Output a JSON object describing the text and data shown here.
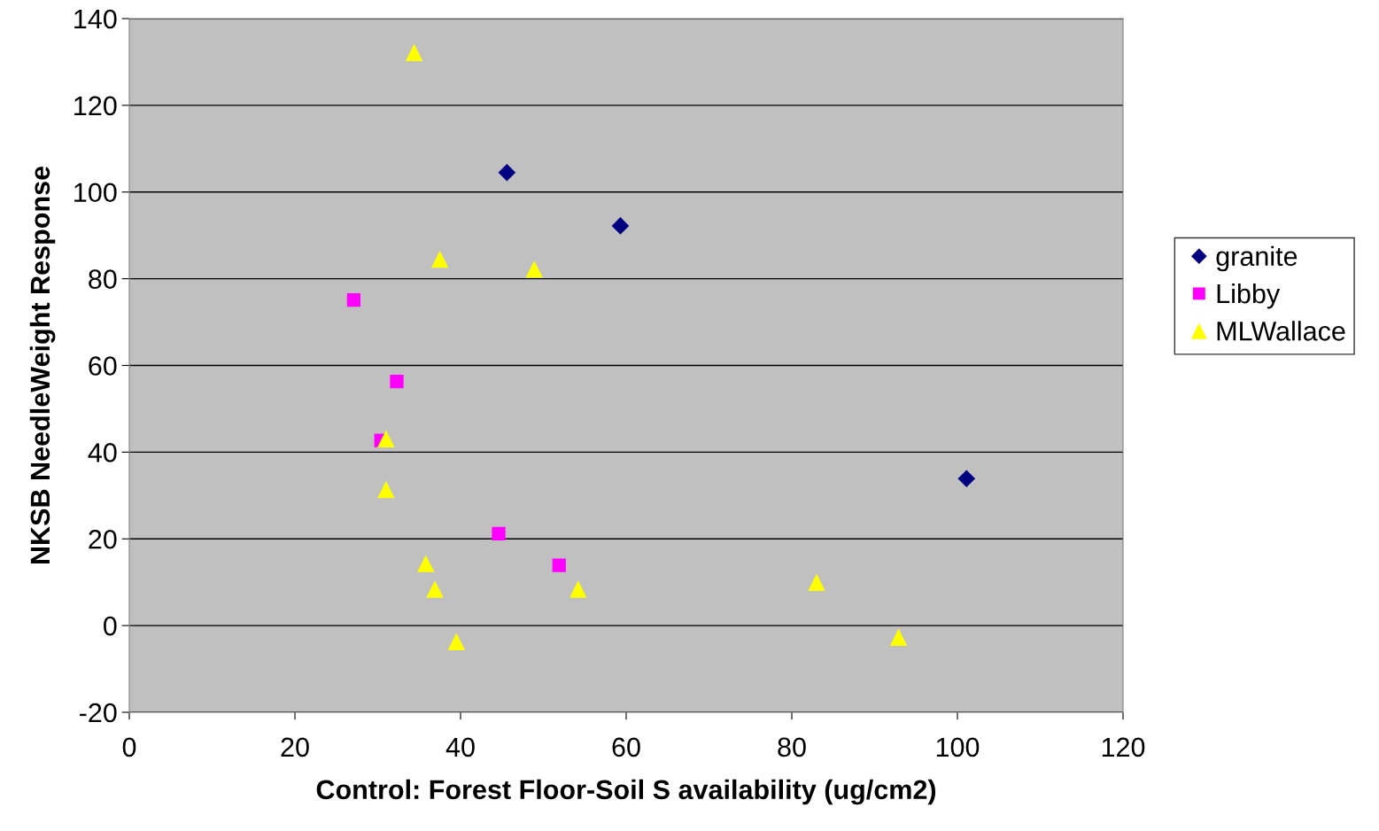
{
  "chart_data": {
    "type": "scatter",
    "xlabel": "Control: Forest Floor-Soil S availability (ug/cm2)",
    "ylabel": "NKSB NeedleWeight Response",
    "xlim": [
      0,
      120
    ],
    "xticks": [
      0,
      20,
      40,
      60,
      80,
      100,
      120
    ],
    "ylim": [
      -20,
      140
    ],
    "yticks": [
      -20,
      0,
      20,
      40,
      60,
      80,
      100,
      120,
      140
    ],
    "grid": "y",
    "legend": "right",
    "series": [
      {
        "name": "granite",
        "color": "#000080",
        "marker": "diamond",
        "x": [
          45.6,
          59.3,
          101.1
        ],
        "values": [
          104.5,
          92.2,
          33.9
        ]
      },
      {
        "name": "Libby",
        "color": "#ff00ff",
        "marker": "square",
        "x": [
          27.1,
          32.3,
          30.4,
          44.6,
          51.9
        ],
        "values": [
          75.1,
          56.3,
          42.7,
          21.2,
          13.9
        ]
      },
      {
        "name": "MLWallace",
        "color": "#ffff00",
        "marker": "triangle",
        "x": [
          34.4,
          37.5,
          48.9,
          31.0,
          31.0,
          35.8,
          36.9,
          39.5,
          54.2,
          83.0,
          92.9
        ],
        "values": [
          132.2,
          84.5,
          82.2,
          43.1,
          31.4,
          14.3,
          8.4,
          -3.7,
          8.4,
          10.0,
          -2.7
        ]
      }
    ]
  }
}
